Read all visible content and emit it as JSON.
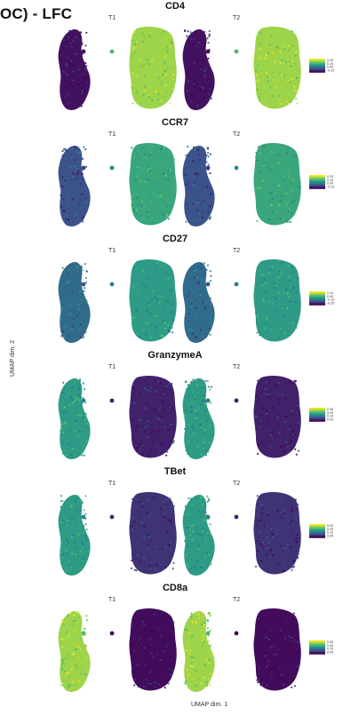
{
  "figure": {
    "header": "OC) -  LFC",
    "ylabel": "UMAP dim. 2",
    "xlabel": "UMAP dim. 1"
  },
  "colorscale": [
    "#440154",
    "#3b528b",
    "#21908d",
    "#5dc863",
    "#fde725"
  ],
  "chart_data": [
    {
      "type": "scatter",
      "title": "CD4",
      "panels": [
        "T1",
        "T2"
      ],
      "left_level": 0.05,
      "right_level": 0.85,
      "legend": [
        "0.40",
        "0.20",
        "0.00",
        "-0.20"
      ]
    },
    {
      "type": "scatter",
      "title": "CCR7",
      "panels": [
        "T1",
        "T2"
      ],
      "left_level": 0.25,
      "right_level": 0.6,
      "legend": [
        "0.20",
        "0.10",
        "0.00",
        "-0.10"
      ]
    },
    {
      "type": "scatter",
      "title": "CD27",
      "panels": [
        "T1",
        "T2"
      ],
      "left_level": 0.35,
      "right_level": 0.55,
      "legend": [
        "0.10",
        "0.00",
        "-0.10",
        "-0.20"
      ]
    },
    {
      "type": "scatter",
      "title": "GranzymeA",
      "panels": [
        "T1",
        "T2"
      ],
      "left_level": 0.55,
      "right_level": 0.1,
      "legend": [
        "0.30",
        "0.20",
        "0.10",
        "0.00"
      ]
    },
    {
      "type": "scatter",
      "title": "TBet",
      "panels": [
        "T1",
        "T2"
      ],
      "left_level": 0.55,
      "right_level": 0.15,
      "legend": [
        "0.30",
        "0.20",
        "0.10",
        "0.00"
      ]
    },
    {
      "type": "scatter",
      "title": "CD8a",
      "panels": [
        "T1",
        "T2"
      ],
      "left_level": 0.85,
      "right_level": 0.03,
      "legend": [
        "0.60",
        "0.40",
        "0.20",
        "0.00"
      ]
    }
  ]
}
